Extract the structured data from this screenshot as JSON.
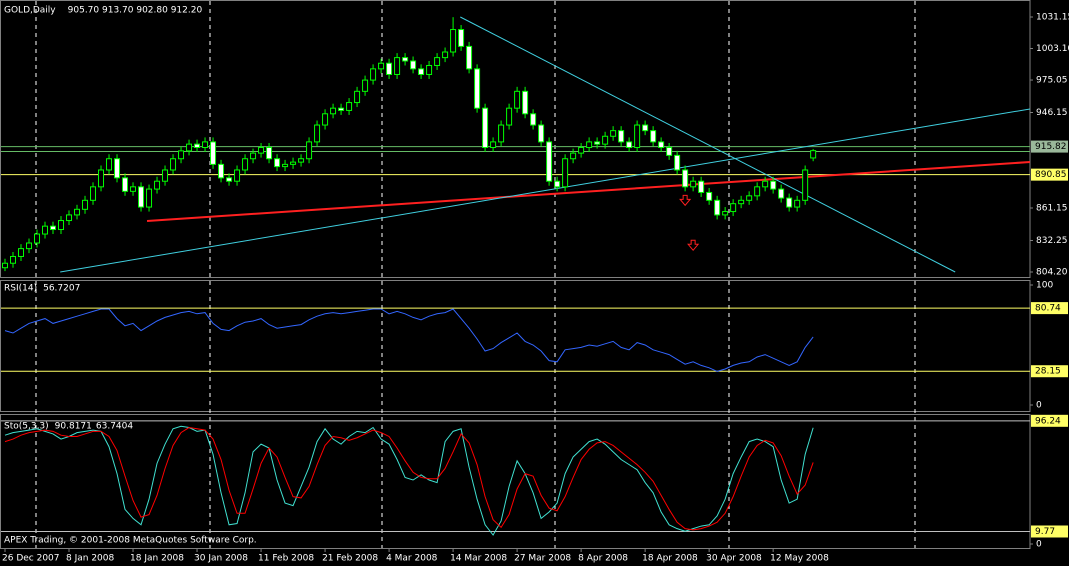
{
  "chart_data": [
    {
      "type": "candlestick",
      "title": "GOLD,Daily",
      "ohlc_label": "905.70 913.70 902.80 912.20",
      "categories": [
        "26 Dec 2007",
        null,
        null,
        null,
        null,
        null,
        null,
        null,
        "8 Jan 2008",
        null,
        null,
        null,
        null,
        null,
        null,
        null,
        "18 Jan 2008",
        null,
        null,
        null,
        null,
        null,
        null,
        null,
        "30 Jan 2008",
        null,
        null,
        null,
        null,
        null,
        null,
        null,
        "11 Feb 2008",
        null,
        null,
        null,
        null,
        null,
        null,
        null,
        "21 Feb 2008",
        null,
        null,
        null,
        null,
        null,
        null,
        null,
        "4 Mar 2008",
        null,
        null,
        null,
        null,
        null,
        null,
        null,
        "14 Mar 2008",
        null,
        null,
        null,
        null,
        null,
        null,
        null,
        "27 Mar 2008",
        null,
        null,
        null,
        null,
        null,
        null,
        null,
        "8 Apr 2008",
        null,
        null,
        null,
        null,
        null,
        null,
        null,
        "18 Apr 2008",
        null,
        null,
        null,
        null,
        null,
        null,
        null,
        "30 Apr 2008",
        null,
        null,
        null,
        null,
        null,
        null,
        null,
        "12 May 2008",
        null,
        null,
        null,
        null,
        null
      ],
      "open": [
        808,
        812,
        818,
        825,
        830,
        838,
        845,
        842,
        850,
        855,
        860,
        868,
        880,
        895,
        905,
        888,
        876,
        880,
        862,
        878,
        885,
        895,
        905,
        912,
        918,
        915,
        920,
        900,
        888,
        885,
        895,
        905,
        910,
        915,
        905,
        898,
        900,
        902,
        905,
        920,
        935,
        945,
        950,
        948,
        955,
        965,
        975,
        985,
        990,
        980,
        995,
        992,
        985,
        980,
        988,
        995,
        1000,
        1020,
        1005,
        985,
        950,
        915,
        920,
        935,
        950,
        965,
        945,
        935,
        920,
        885,
        880,
        905,
        910,
        915,
        920,
        918,
        925,
        930,
        920,
        915,
        935,
        930,
        920,
        915,
        908,
        895,
        880,
        885,
        875,
        868,
        855,
        858,
        865,
        868,
        872,
        880,
        885,
        878,
        870,
        862,
        868,
        905.7
      ],
      "high": [
        816,
        822,
        829,
        834,
        842,
        849,
        849,
        854,
        859,
        864,
        872,
        884,
        899,
        909,
        909,
        892,
        884,
        884,
        882,
        889,
        899,
        909,
        916,
        922,
        922,
        924,
        924,
        904,
        892,
        899,
        909,
        914,
        919,
        919,
        909,
        904,
        906,
        909,
        924,
        939,
        949,
        954,
        954,
        959,
        969,
        979,
        989,
        994,
        994,
        999,
        999,
        996,
        989,
        992,
        999,
        1004,
        1031,
        1024,
        1009,
        989,
        954,
        924,
        939,
        954,
        969,
        969,
        949,
        939,
        924,
        889,
        909,
        914,
        919,
        924,
        924,
        929,
        934,
        934,
        924,
        939,
        939,
        934,
        924,
        919,
        912,
        899,
        889,
        889,
        879,
        872,
        862,
        869,
        872,
        876,
        884,
        889,
        889,
        882,
        874,
        872,
        899,
        913.7
      ],
      "low": [
        805,
        808,
        814,
        821,
        826,
        834,
        838,
        838,
        846,
        851,
        856,
        864,
        876,
        891,
        884,
        872,
        872,
        858,
        858,
        874,
        881,
        891,
        901,
        908,
        911,
        911,
        896,
        884,
        881,
        881,
        891,
        901,
        906,
        901,
        894,
        894,
        896,
        898,
        901,
        916,
        931,
        941,
        944,
        944,
        951,
        961,
        971,
        981,
        976,
        976,
        988,
        981,
        976,
        976,
        984,
        991,
        996,
        1001,
        981,
        946,
        911,
        911,
        916,
        931,
        946,
        941,
        931,
        916,
        881,
        876,
        876,
        901,
        906,
        911,
        914,
        914,
        921,
        916,
        911,
        911,
        926,
        916,
        911,
        904,
        891,
        876,
        876,
        871,
        864,
        851,
        851,
        854,
        861,
        864,
        868,
        876,
        874,
        866,
        858,
        858,
        864,
        902.8
      ],
      "close": [
        812,
        818,
        825,
        830,
        838,
        845,
        842,
        850,
        855,
        860,
        868,
        880,
        895,
        905,
        888,
        876,
        880,
        862,
        878,
        885,
        895,
        905,
        912,
        918,
        915,
        920,
        900,
        888,
        885,
        895,
        905,
        910,
        915,
        905,
        898,
        900,
        902,
        905,
        920,
        935,
        945,
        950,
        948,
        955,
        965,
        975,
        985,
        990,
        980,
        995,
        992,
        985,
        980,
        988,
        995,
        1000,
        1020,
        1005,
        985,
        950,
        915,
        920,
        935,
        950,
        965,
        945,
        935,
        920,
        885,
        880,
        905,
        910,
        915,
        920,
        918,
        925,
        930,
        920,
        915,
        935,
        930,
        920,
        915,
        908,
        895,
        880,
        885,
        875,
        868,
        855,
        858,
        865,
        868,
        872,
        880,
        885,
        878,
        870,
        862,
        868,
        895,
        912.2
      ],
      "colors": {
        "wick": "#00ff00",
        "up": "#000000",
        "down": "#ffffff"
      },
      "xlim": [
        -0.5,
        128.1
      ],
      "ylim": [
        804.2,
        1031.15
      ],
      "yticks": [
        1031.15,
        {
          "value": 1003.1,
          "label": "1003.10"
        },
        975.05,
        946.15,
        861.15,
        832.25,
        {
          "value": 804.2,
          "label": "804.20"
        }
      ],
      "hlines": [
        {
          "value": 915.82,
          "color": "#66bb66",
          "box": "#9ab89a"
        },
        {
          "value": 911.5,
          "color": "#66bb66"
        },
        {
          "value": 890.85,
          "color": "#ffff66",
          "box": "#ffff66"
        }
      ],
      "trendlines": [
        {
          "x": [
            17.75,
            128.1
          ],
          "y": [
            849.6,
            902.1
          ],
          "color": "#ff2020",
          "width": 2
        },
        {
          "x": [
            56.9,
            118.75
          ],
          "y": [
            1031.15,
            804.2
          ],
          "color": "#40d0e0",
          "width": 1
        },
        {
          "x": [
            6.9,
            128.1
          ],
          "y": [
            804.2,
            949.3
          ],
          "color": "#40d0e0",
          "width": 1
        }
      ],
      "arrows": [
        {
          "x": 85,
          "y": 868,
          "color": "#ff2020"
        },
        {
          "x": 86,
          "y": 828,
          "color": "#ff2020"
        }
      ]
    },
    {
      "type": "line",
      "title": "RSI(14)",
      "xlim": [
        -0.5,
        128.1
      ],
      "ylim": [
        0,
        100
      ],
      "yticks": [
        0,
        100
      ],
      "hlines": [
        {
          "value": 80.74,
          "color": "#ffff66",
          "box": "#ffff66"
        },
        {
          "value": 28.15,
          "color": "#ffff66",
          "box": "#ffff66"
        }
      ],
      "series": [
        {
          "color": "#3366ff",
          "values": [
            62,
            60,
            64,
            68,
            70,
            72,
            68,
            70,
            72,
            74,
            76,
            78,
            80,
            80,
            72,
            66,
            68,
            62,
            66,
            70,
            73,
            75,
            77,
            78,
            76,
            77,
            68,
            63,
            62,
            66,
            69,
            70,
            72,
            67,
            64,
            65,
            66,
            67,
            71,
            74,
            76,
            77,
            76,
            77,
            78,
            79,
            80,
            80,
            76,
            78,
            76,
            73,
            71,
            74,
            76,
            77,
            80,
            72,
            64,
            55,
            45,
            47,
            52,
            56,
            60,
            53,
            50,
            45,
            37,
            36,
            46,
            47,
            48,
            50,
            49,
            51,
            53,
            48,
            46,
            52,
            50,
            46,
            44,
            42,
            38,
            34,
            36,
            33,
            31,
            28,
            30,
            33,
            35,
            36,
            40,
            42,
            39,
            36,
            33,
            36,
            48,
            56.7207
          ]
        }
      ]
    },
    {
      "type": "line",
      "title": "Sto(5,3,3)",
      "annotation": "APEX Trading, © 2001-2008 MetaQuotes Software Corp.",
      "xlim": [
        -0.5,
        128.1
      ],
      "ylim": [
        0,
        100
      ],
      "yticks": [
        0
      ],
      "hlines": [
        {
          "value": 96.24,
          "color": "#c0c0c0",
          "box": "#ffff66"
        },
        {
          "value": 9.77,
          "color": "#c0c0c0",
          "box": "#ffff66"
        }
      ],
      "series": [
        {
          "color": "#40e0d0",
          "values": [
            85,
            87,
            88,
            89,
            90,
            88,
            86,
            82,
            84,
            87,
            88,
            89,
            88,
            76,
            55,
            27,
            20,
            15,
            35,
            63,
            78,
            90,
            92,
            91,
            88,
            89,
            70,
            40,
            15,
            16,
            40,
            72,
            78,
            75,
            50,
            32,
            30,
            45,
            60,
            80,
            90,
            82,
            78,
            84,
            88,
            87,
            91,
            82,
            78,
            66,
            52,
            50,
            54,
            50,
            48,
            80,
            88,
            90,
            60,
            35,
            15,
            7,
            18,
            45,
            65,
            55,
            40,
            20,
            25,
            32,
            55,
            68,
            74,
            80,
            82,
            78,
            72,
            66,
            62,
            58,
            48,
            40,
            25,
            15,
            12,
            10,
            12,
            14,
            15,
            22,
            35,
            55,
            68,
            80,
            82,
            80,
            76,
            50,
            32,
            35,
            70,
            90.8171
          ]
        },
        {
          "color": "#ff0000",
          "values": [
            80,
            82,
            85,
            87,
            88,
            89,
            88,
            85,
            84,
            84,
            86,
            88,
            88,
            84,
            73,
            53,
            34,
            21,
            23,
            38,
            59,
            77,
            87,
            91,
            90,
            89,
            82,
            66,
            42,
            24,
            24,
            43,
            63,
            75,
            68,
            52,
            37,
            36,
            45,
            62,
            77,
            84,
            83,
            81,
            83,
            86,
            89,
            87,
            84,
            75,
            65,
            56,
            52,
            51,
            51,
            59,
            72,
            86,
            79,
            62,
            37,
            19,
            13,
            23,
            43,
            55,
            53,
            38,
            28,
            26,
            37,
            52,
            66,
            74,
            79,
            80,
            77,
            72,
            67,
            62,
            56,
            49,
            38,
            27,
            17,
            12,
            11,
            12,
            14,
            17,
            24,
            37,
            53,
            68,
            77,
            81,
            79,
            69,
            53,
            39,
            46,
            63.7404
          ]
        }
      ]
    }
  ]
}
